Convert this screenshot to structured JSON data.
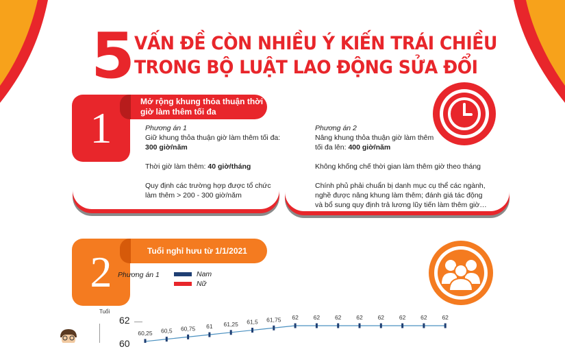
{
  "title": {
    "number": "5",
    "line1": "VẤN ĐỀ CÒN NHIỀU Ý KIẾN TRÁI CHIỀU",
    "line2": "TRONG BỘ LUẬT LAO ĐỘNG SỬA ĐỔI"
  },
  "colors": {
    "red": "#e8262b",
    "orange": "#f47b20",
    "navy": "#1f3f73",
    "line": "#4a90c0"
  },
  "section1": {
    "number": "1",
    "header": [
      "Mở rộng khung thỏa thuận thời",
      "giờ làm thêm tối đa"
    ],
    "icon": "clock-icon",
    "option1": {
      "label": "Phương án 1",
      "l1": "Giữ khung thỏa thuận giờ làm thêm tối đa:",
      "l1b": "300 giờ/năm",
      "l2": "Thời giờ làm thêm: ",
      "l2b": "40 giờ/tháng",
      "l3": "Quy định các trường hợp được tổ chức",
      "l4": "làm thêm > 200 - 300 giờ/năm"
    },
    "option2": {
      "label": "Phương án  2",
      "l1": "Nâng khung thỏa thuận giờ làm thêm",
      "l2": "tối đa lên: ",
      "l2b": "400 giờ/năm",
      "l3": "Không khống chế thời gian làm thêm giờ theo tháng",
      "l4": "Chính phủ phải chuẩn bị danh mục cụ thể các ngành,",
      "l5": " nghề được nâng khung làm thêm; đánh giá tác động",
      "l6": "và bổ sung quy định trả lương lũy tiến làm thêm giờ…"
    }
  },
  "section2": {
    "number": "2",
    "header": "Tuổi nghỉ hưu từ 1/1/2021",
    "icon": "people-icon",
    "option_label": "Phương án 1",
    "legend": [
      {
        "name": "Nam",
        "color": "#1f3f73"
      },
      {
        "name": "Nữ",
        "color": "#e8262b"
      }
    ]
  },
  "chart_data": {
    "type": "line",
    "ylabel": "Tuổi",
    "y_ticks": [
      "62",
      "60"
    ],
    "series": [
      {
        "name": "Nam",
        "values": [
          60.25,
          60.5,
          60.75,
          61,
          61.25,
          61.5,
          61.75,
          62,
          62,
          62,
          62,
          62,
          62,
          62,
          62
        ],
        "labels": [
          "60,25",
          "60,5",
          "60,75",
          "61",
          "61,25",
          "61,5",
          "61,75",
          "62",
          "62",
          "62",
          "62",
          "62",
          "62",
          "62",
          "62"
        ]
      }
    ]
  }
}
